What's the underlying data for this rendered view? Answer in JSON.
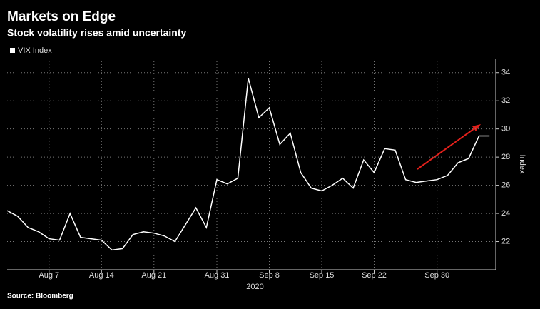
{
  "chart_data": {
    "type": "line",
    "title": "Markets on Edge",
    "subtitle": "Stock volatility rises amid uncertainty",
    "source": "Source: Bloomberg",
    "ylabel": "Index",
    "x_year_label": "2020",
    "categories": [
      null,
      null,
      null,
      null,
      "Aug 7",
      null,
      null,
      null,
      null,
      "Aug 14",
      null,
      null,
      null,
      null,
      "Aug 21",
      null,
      null,
      null,
      null,
      null,
      "Aug 31",
      null,
      null,
      null,
      null,
      "Sep 8",
      null,
      null,
      null,
      null,
      "Sep 15",
      null,
      null,
      null,
      null,
      "Sep 22",
      null,
      null,
      null,
      null,
      null,
      "Sep 30",
      null,
      null,
      null,
      null,
      null
    ],
    "series": [
      {
        "name": "VIX Index",
        "color": "#ffffff",
        "values": [
          24.2,
          23.8,
          23.0,
          22.7,
          22.2,
          22.1,
          24.0,
          22.3,
          22.2,
          22.1,
          21.4,
          21.5,
          22.5,
          22.7,
          22.6,
          22.4,
          22.0,
          23.2,
          24.4,
          23.0,
          26.4,
          26.1,
          26.5,
          33.6,
          30.8,
          31.5,
          28.9,
          29.7,
          26.9,
          25.8,
          25.6,
          26.0,
          26.5,
          25.8,
          27.8,
          26.9,
          28.6,
          28.5,
          26.4,
          26.2,
          26.3,
          26.4,
          26.7,
          27.6,
          27.9,
          29.5,
          29.5
        ]
      }
    ],
    "ylim": [
      20,
      35
    ],
    "yticks": [
      22,
      24,
      26,
      28,
      30,
      32,
      34
    ],
    "grid": true
  }
}
